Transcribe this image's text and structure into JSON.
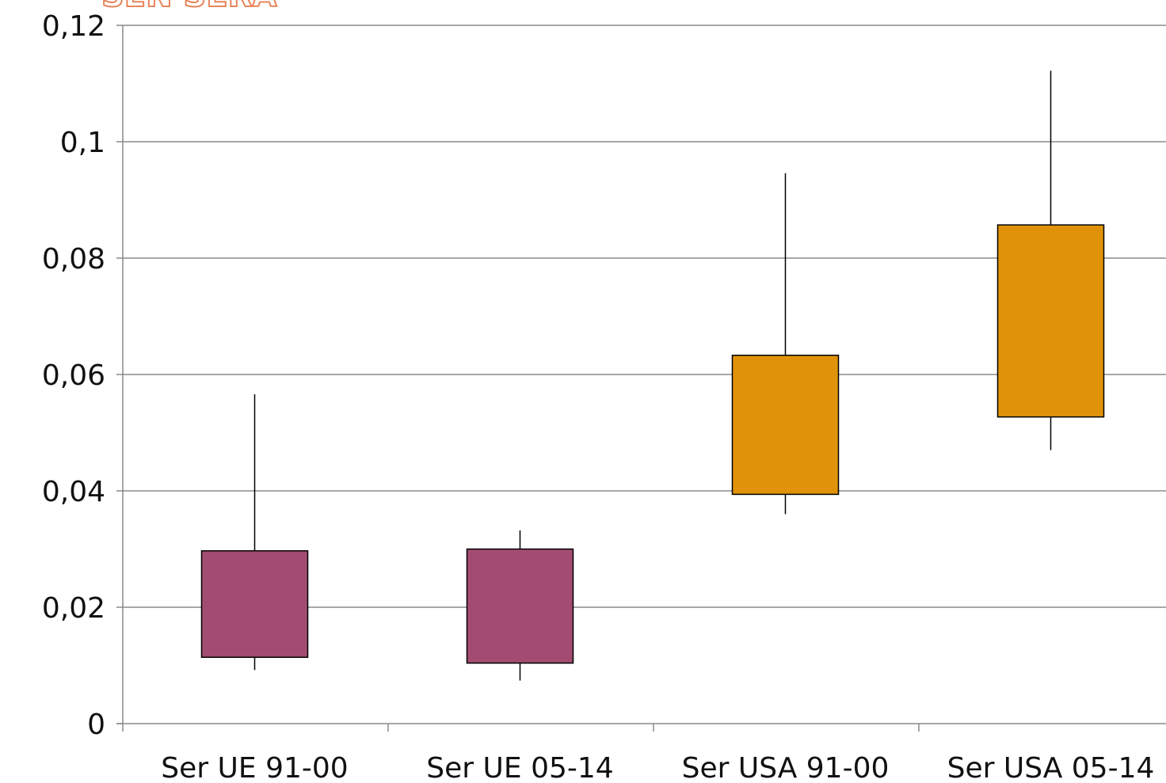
{
  "header": {
    "title_fragment": "SEN SERA"
  },
  "chart_data": {
    "type": "box",
    "categories": [
      "Ser UE 91-00",
      "Ser UE 05-14",
      "Ser USA 91-00",
      "Ser USA 05-14"
    ],
    "yticks": [
      "0",
      "0,02",
      "0,04",
      "0,06",
      "0,08",
      "0,1",
      "0,12"
    ],
    "ylim": [
      0,
      0.12
    ],
    "grid": true,
    "boxes": [
      {
        "min": 0.0092,
        "q1": 0.0114,
        "q3": 0.0297,
        "max": 0.0566,
        "color": "#a34c72"
      },
      {
        "min": 0.0074,
        "q1": 0.0104,
        "q3": 0.03,
        "max": 0.0332,
        "color": "#a34c72"
      },
      {
        "min": 0.036,
        "q1": 0.0394,
        "q3": 0.0633,
        "max": 0.0946,
        "color": "#e0930a"
      },
      {
        "min": 0.047,
        "q1": 0.0527,
        "q3": 0.0857,
        "max": 0.1122,
        "color": "#e0930a"
      }
    ]
  }
}
